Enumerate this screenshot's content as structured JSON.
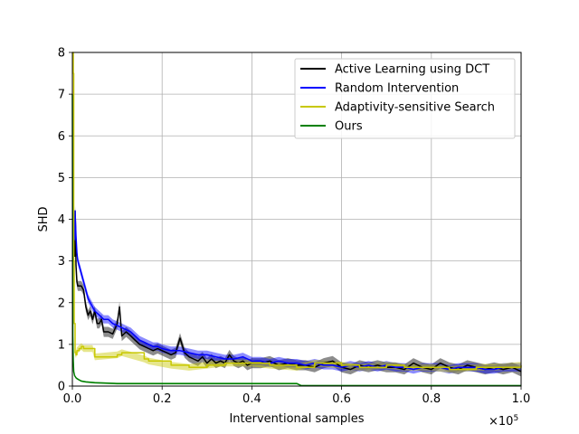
{
  "chart_data": {
    "type": "line",
    "xlabel": "Interventional samples",
    "ylabel": "SHD",
    "x_multiplier_label": "×10",
    "x_multiplier_exponent": "5",
    "xlim": [
      0,
      1.0
    ],
    "ylim": [
      0,
      8
    ],
    "xticks": [
      0.0,
      0.2,
      0.4,
      0.6,
      0.8,
      1.0
    ],
    "xtick_labels": [
      "0.0",
      "0.2",
      "0.4",
      "0.6",
      "0.8",
      "1.0"
    ],
    "yticks": [
      0,
      1,
      2,
      3,
      4,
      5,
      6,
      7,
      8
    ],
    "ytick_labels": [
      "0",
      "1",
      "2",
      "3",
      "4",
      "5",
      "6",
      "7",
      "8"
    ],
    "grid": true,
    "legend_position": "top-right",
    "series": [
      {
        "name": "Active Learning using DCT",
        "color": "#000000",
        "x": [
          0.005,
          0.006,
          0.007,
          0.008,
          0.01,
          0.012,
          0.015,
          0.02,
          0.025,
          0.03,
          0.035,
          0.04,
          0.045,
          0.05,
          0.055,
          0.06,
          0.065,
          0.07,
          0.08,
          0.09,
          0.1,
          0.105,
          0.11,
          0.12,
          0.13,
          0.14,
          0.15,
          0.16,
          0.17,
          0.18,
          0.19,
          0.2,
          0.21,
          0.22,
          0.23,
          0.24,
          0.25,
          0.26,
          0.27,
          0.28,
          0.29,
          0.3,
          0.31,
          0.32,
          0.33,
          0.34,
          0.35,
          0.36,
          0.37,
          0.38,
          0.39,
          0.4,
          0.42,
          0.44,
          0.46,
          0.48,
          0.5,
          0.52,
          0.54,
          0.56,
          0.58,
          0.6,
          0.62,
          0.64,
          0.66,
          0.68,
          0.7,
          0.72,
          0.74,
          0.76,
          0.78,
          0.8,
          0.82,
          0.84,
          0.86,
          0.88,
          0.9,
          0.92,
          0.94,
          0.96,
          0.98,
          1.0
        ],
        "y": [
          3.1,
          4.2,
          3.8,
          2.9,
          2.5,
          2.4,
          2.4,
          2.4,
          2.3,
          1.9,
          1.7,
          1.8,
          1.6,
          1.8,
          1.5,
          1.5,
          1.6,
          1.3,
          1.3,
          1.25,
          1.5,
          1.9,
          1.2,
          1.3,
          1.2,
          1.1,
          1.0,
          0.95,
          0.9,
          0.85,
          0.9,
          0.85,
          0.8,
          0.75,
          0.8,
          1.15,
          0.8,
          0.7,
          0.65,
          0.6,
          0.7,
          0.55,
          0.65,
          0.55,
          0.6,
          0.55,
          0.75,
          0.6,
          0.55,
          0.6,
          0.5,
          0.55,
          0.55,
          0.6,
          0.5,
          0.55,
          0.5,
          0.5,
          0.45,
          0.55,
          0.6,
          0.45,
          0.4,
          0.5,
          0.45,
          0.5,
          0.45,
          0.45,
          0.4,
          0.55,
          0.45,
          0.4,
          0.55,
          0.45,
          0.4,
          0.5,
          0.45,
          0.4,
          0.45,
          0.4,
          0.45,
          0.35
        ]
      },
      {
        "name": "Random Intervention",
        "color": "#0000ff",
        "x": [
          0.005,
          0.006,
          0.008,
          0.01,
          0.012,
          0.015,
          0.02,
          0.025,
          0.03,
          0.035,
          0.04,
          0.045,
          0.05,
          0.06,
          0.07,
          0.08,
          0.09,
          0.1,
          0.11,
          0.12,
          0.13,
          0.14,
          0.15,
          0.16,
          0.17,
          0.18,
          0.19,
          0.2,
          0.22,
          0.24,
          0.26,
          0.28,
          0.3,
          0.32,
          0.34,
          0.36,
          0.38,
          0.4,
          0.42,
          0.44,
          0.46,
          0.48,
          0.5,
          0.52,
          0.54,
          0.56,
          0.58,
          0.6,
          0.62,
          0.64,
          0.66,
          0.68,
          0.7,
          0.72,
          0.74,
          0.76,
          0.78,
          0.8,
          0.82,
          0.84,
          0.86,
          0.88,
          0.9,
          0.92,
          0.94,
          0.96,
          0.98,
          1.0
        ],
        "y": [
          3.5,
          4.2,
          3.6,
          3.2,
          3.0,
          2.9,
          2.7,
          2.5,
          2.3,
          2.1,
          2.0,
          1.9,
          1.8,
          1.7,
          1.6,
          1.6,
          1.5,
          1.45,
          1.4,
          1.35,
          1.3,
          1.2,
          1.1,
          1.05,
          1.0,
          0.95,
          0.95,
          0.9,
          0.85,
          0.85,
          0.8,
          0.75,
          0.75,
          0.7,
          0.65,
          0.65,
          0.7,
          0.6,
          0.6,
          0.55,
          0.6,
          0.55,
          0.55,
          0.5,
          0.55,
          0.5,
          0.5,
          0.45,
          0.5,
          0.45,
          0.5,
          0.45,
          0.5,
          0.45,
          0.45,
          0.4,
          0.45,
          0.45,
          0.45,
          0.4,
          0.45,
          0.45,
          0.45,
          0.4,
          0.4,
          0.45,
          0.45,
          0.45
        ]
      },
      {
        "name": "Adaptivity-sensitive Search",
        "color": "#c8c800",
        "x": [
          0.0,
          0.002,
          0.003,
          0.004,
          0.006,
          0.008,
          0.01,
          0.015,
          0.02,
          0.025,
          0.045,
          0.05,
          0.1,
          0.11,
          0.16,
          0.17,
          0.22,
          0.26,
          0.3,
          0.34,
          0.4,
          0.44,
          0.5,
          0.54,
          0.6,
          0.64,
          0.7,
          0.74,
          0.8,
          0.84,
          0.9,
          0.94,
          1.0
        ],
        "y": [
          8.0,
          7.5,
          3.0,
          1.5,
          0.8,
          0.75,
          0.85,
          0.9,
          0.95,
          0.9,
          0.9,
          0.7,
          0.75,
          0.8,
          0.65,
          0.6,
          0.5,
          0.45,
          0.5,
          0.55,
          0.55,
          0.5,
          0.45,
          0.55,
          0.5,
          0.45,
          0.5,
          0.45,
          0.45,
          0.4,
          0.45,
          0.45,
          0.5
        ]
      },
      {
        "name": "Ours",
        "color": "#008000",
        "x": [
          0.0,
          0.001,
          0.002,
          0.003,
          0.005,
          0.008,
          0.01,
          0.015,
          0.02,
          0.03,
          0.05,
          0.1,
          0.2,
          0.3,
          0.4,
          0.5,
          0.51,
          0.6,
          0.7,
          0.8,
          0.9,
          1.0
        ],
        "y": [
          7.0,
          1.2,
          0.6,
          0.35,
          0.25,
          0.2,
          0.18,
          0.15,
          0.12,
          0.1,
          0.08,
          0.06,
          0.06,
          0.06,
          0.06,
          0.06,
          0.01,
          0.01,
          0.01,
          0.01,
          0.01,
          0.01
        ]
      }
    ]
  }
}
